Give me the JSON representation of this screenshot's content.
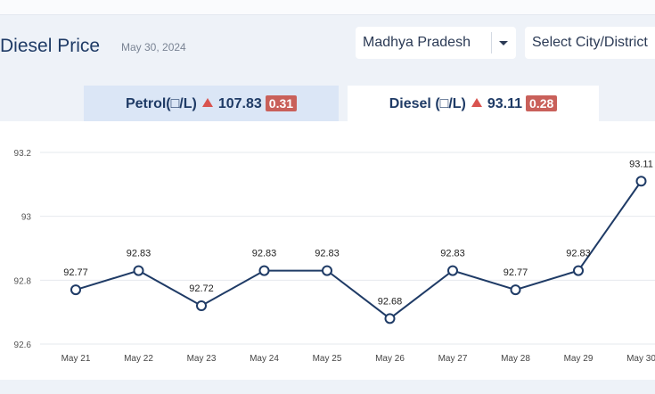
{
  "header": {
    "title": "Diesel Price",
    "date": "May 30, 2024"
  },
  "filters": {
    "state": "Madhya Pradesh",
    "city_placeholder": "Select City/District"
  },
  "tabs": [
    {
      "label": "Petrol(□/L)",
      "value": "107.83",
      "change": "0.31",
      "active": false
    },
    {
      "label": "Diesel (□/L)",
      "value": "93.11",
      "change": "0.28",
      "active": true
    }
  ],
  "colors": {
    "accent": "#1f3b66",
    "up_indicator": "#d9534f",
    "badge": "#c9605a"
  },
  "chart_data": {
    "type": "line",
    "categories": [
      "May 21",
      "May 22",
      "May 23",
      "May 24",
      "May 25",
      "May 26",
      "May 27",
      "May 28",
      "May 29",
      "May 30"
    ],
    "values": [
      92.77,
      92.83,
      92.72,
      92.83,
      92.83,
      92.68,
      92.83,
      92.77,
      92.83,
      93.11
    ],
    "data_labels": [
      "92.77",
      "92.83",
      "92.72",
      "92.83",
      "92.83",
      "92.68",
      "92.83",
      "92.77",
      "92.83",
      "93.11"
    ],
    "yticks": [
      "92.6",
      "92.8",
      "93",
      "93.2"
    ],
    "ylim": [
      92.6,
      93.2
    ],
    "grid": true,
    "line_color": "#1f3b66"
  }
}
